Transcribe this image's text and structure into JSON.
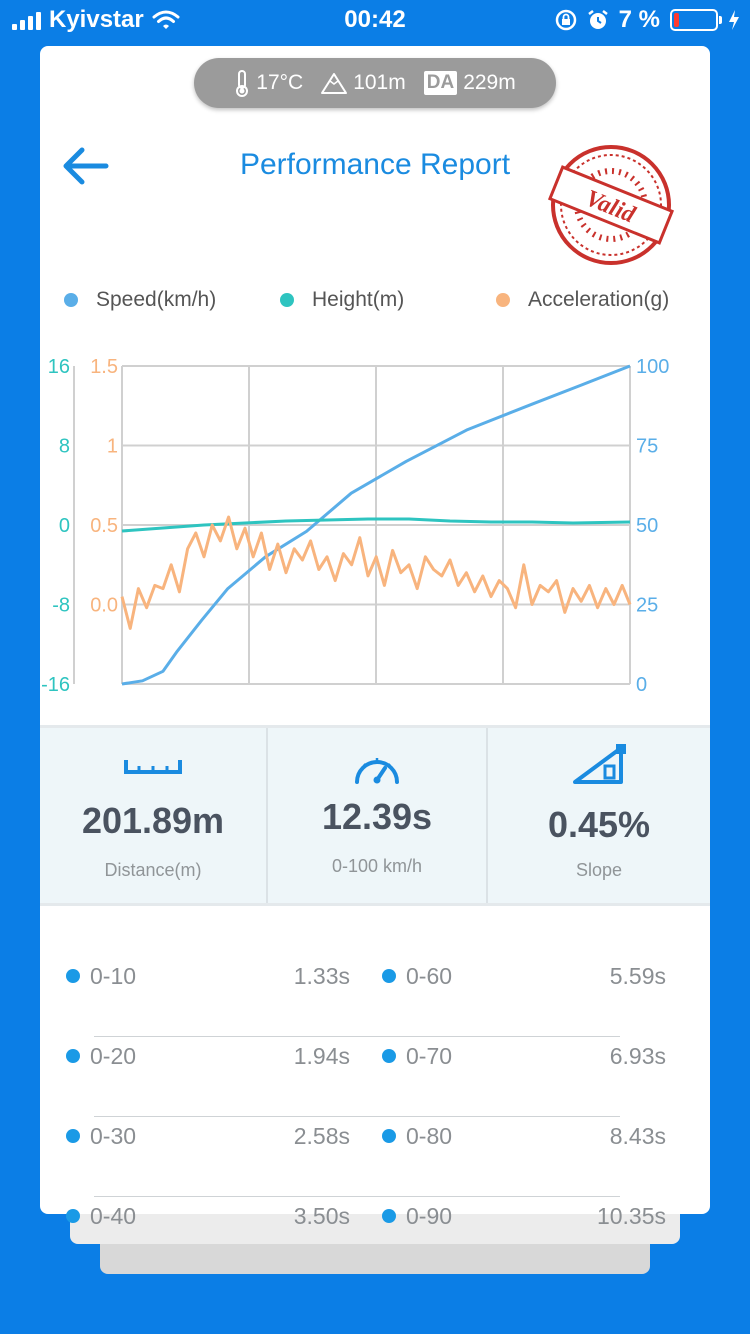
{
  "status_bar": {
    "carrier": "Kyivstar",
    "time": "00:42",
    "battery": "7 %"
  },
  "environment": {
    "temperature": "17°C",
    "altitude": "101m",
    "da_label": "DA",
    "density_altitude": "229m"
  },
  "header": {
    "title": "Performance Report",
    "stamp_text": "Valid"
  },
  "legend": [
    {
      "label": "Speed(km/h)",
      "color": "#5aaee8"
    },
    {
      "label": "Height(m)",
      "color": "#2ec4c0"
    },
    {
      "label": "Acceleration(g)",
      "color": "#f8b47e"
    }
  ],
  "chart_data": {
    "type": "line",
    "axes": {
      "height_left": {
        "ticks": [
          "16",
          "8",
          "0",
          "-8",
          "-16"
        ],
        "range": [
          -16,
          16
        ],
        "color": "#2ec4c0"
      },
      "accel_left": {
        "ticks": [
          "1.5",
          "1",
          "0.5",
          "0.0"
        ],
        "range": [
          -0.5,
          1.5
        ],
        "color": "#f8b47e"
      },
      "speed_right": {
        "ticks": [
          "100",
          "75",
          "50",
          "25",
          "0"
        ],
        "range": [
          0,
          100
        ],
        "color": "#5aaee8"
      }
    },
    "x_range": [
      0,
      12.39
    ],
    "grid": true,
    "series": [
      {
        "name": "Speed(km/h)",
        "axis": "speed_right",
        "color": "#5aaee8",
        "x": [
          0,
          0.5,
          1,
          1.33,
          1.94,
          2.58,
          3.5,
          4.5,
          5.59,
          6.93,
          8.43,
          10,
          11.2,
          12.39
        ],
        "y": [
          0,
          1,
          4,
          10,
          20,
          30,
          40,
          48,
          60,
          70,
          80,
          88,
          94,
          100
        ]
      },
      {
        "name": "Height(m)",
        "axis": "height_left",
        "color": "#2ec4c0",
        "x": [
          0,
          1,
          2,
          3,
          4,
          5,
          6,
          7,
          8,
          9,
          10,
          11,
          12.39
        ],
        "y": [
          -0.6,
          -0.3,
          0.0,
          0.2,
          0.4,
          0.5,
          0.6,
          0.6,
          0.4,
          0.3,
          0.3,
          0.2,
          0.3
        ]
      },
      {
        "name": "Acceleration(g)",
        "axis": "accel_left",
        "color": "#f8b47e",
        "x": [
          0,
          0.2,
          0.4,
          0.6,
          0.8,
          1.0,
          1.2,
          1.4,
          1.6,
          1.8,
          2.0,
          2.2,
          2.4,
          2.6,
          2.8,
          3.0,
          3.2,
          3.4,
          3.6,
          3.8,
          4.0,
          4.2,
          4.4,
          4.6,
          4.8,
          5.0,
          5.2,
          5.4,
          5.6,
          5.8,
          6.0,
          6.2,
          6.4,
          6.6,
          6.8,
          7.0,
          7.2,
          7.4,
          7.6,
          7.8,
          8.0,
          8.2,
          8.4,
          8.6,
          8.8,
          9.0,
          9.2,
          9.4,
          9.6,
          9.8,
          10.0,
          10.2,
          10.4,
          10.6,
          10.8,
          11.0,
          11.2,
          11.4,
          11.6,
          11.8,
          12.0,
          12.2,
          12.39
        ],
        "y": [
          0.05,
          -0.15,
          0.1,
          -0.02,
          0.12,
          0.1,
          0.25,
          0.08,
          0.35,
          0.45,
          0.3,
          0.5,
          0.4,
          0.55,
          0.35,
          0.48,
          0.3,
          0.45,
          0.22,
          0.38,
          0.2,
          0.35,
          0.28,
          0.4,
          0.22,
          0.3,
          0.15,
          0.32,
          0.25,
          0.42,
          0.18,
          0.3,
          0.12,
          0.34,
          0.2,
          0.25,
          0.1,
          0.3,
          0.22,
          0.18,
          0.28,
          0.12,
          0.2,
          0.08,
          0.18,
          0.05,
          0.15,
          0.1,
          -0.02,
          0.25,
          0.0,
          0.12,
          0.08,
          0.15,
          -0.05,
          0.1,
          0.02,
          0.12,
          -0.02,
          0.1,
          0.0,
          0.12,
          0.0
        ]
      }
    ]
  },
  "stats": [
    {
      "value": "201.89m",
      "label": "Distance(m)",
      "icon": "ruler-icon"
    },
    {
      "value": "12.39s",
      "label": "0-100 km/h",
      "icon": "speedometer-icon"
    },
    {
      "value": "0.45%",
      "label": "Slope",
      "icon": "slope-icon"
    }
  ],
  "splits": [
    {
      "left": {
        "range": "0-10",
        "time": "1.33s"
      },
      "right": {
        "range": "0-60",
        "time": "5.59s"
      }
    },
    {
      "left": {
        "range": "0-20",
        "time": "1.94s"
      },
      "right": {
        "range": "0-70",
        "time": "6.93s"
      }
    },
    {
      "left": {
        "range": "0-30",
        "time": "2.58s"
      },
      "right": {
        "range": "0-80",
        "time": "8.43s"
      }
    },
    {
      "left": {
        "range": "0-40",
        "time": "3.50s"
      },
      "right": {
        "range": "0-90",
        "time": "10.35s"
      }
    }
  ]
}
